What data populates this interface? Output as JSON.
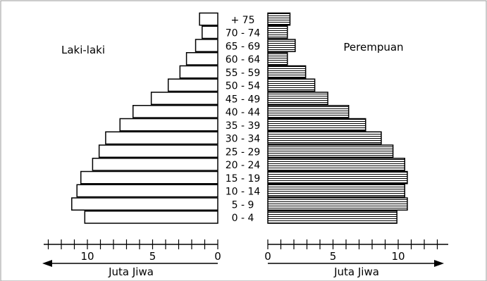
{
  "chart_data": {
    "type": "bar",
    "subtype": "population-pyramid",
    "categories": [
      "0 - 4",
      "5 - 9",
      "10 - 14",
      "15 - 19",
      "20 - 24",
      "25 - 29",
      "30 - 34",
      "35 - 39",
      "40 - 44",
      "45 - 49",
      "50 - 54",
      "55 - 59",
      "60 - 64",
      "65 - 69",
      "70 - 74",
      "+ 75"
    ],
    "series": [
      {
        "name": "Laki-laki",
        "values": [
          10.2,
          11.2,
          10.8,
          10.5,
          9.6,
          9.1,
          8.6,
          7.5,
          6.5,
          5.1,
          3.8,
          2.9,
          2.4,
          1.7,
          1.2,
          1.4
        ]
      },
      {
        "name": "Perempuan",
        "values": [
          9.9,
          10.7,
          10.5,
          10.7,
          10.5,
          9.6,
          8.7,
          7.5,
          6.2,
          4.6,
          3.6,
          2.9,
          1.5,
          2.1,
          1.5,
          1.7
        ]
      }
    ],
    "left_label": "Laki-laki",
    "right_label": "Perempuan",
    "left_ticks": [
      "10",
      "5",
      "0"
    ],
    "right_ticks": [
      "0",
      "5",
      "10"
    ],
    "left_axis_label": "Juta Jiwa",
    "right_axis_label": "Juta Jiwa",
    "xlim": [
      0,
      12
    ],
    "grid": false,
    "colors": {
      "male_fill": "#ffffff",
      "female_fill": "#ffffff",
      "stroke": "#000000",
      "female_hatch": "horizontal-lines"
    }
  }
}
